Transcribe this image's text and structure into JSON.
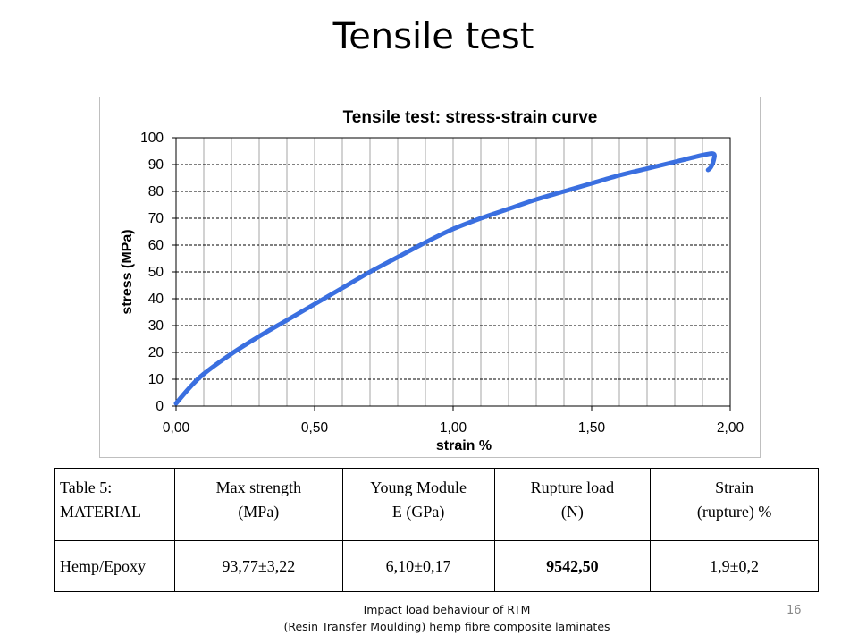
{
  "slide": {
    "title": "Tensile test",
    "footer_line1": "Impact load behaviour of RTM",
    "footer_line2": "(Resin Transfer Moulding) hemp fibre composite laminates",
    "page_number": "16"
  },
  "chart_data": {
    "type": "line",
    "title": "Tensile test: stress-strain curve",
    "xlabel": "strain %",
    "ylabel": "stress (MPa)",
    "xlim": [
      0,
      2
    ],
    "ylim": [
      0,
      100
    ],
    "x_ticks": [
      "0,00",
      "0,50",
      "1,00",
      "1,50",
      "2,00"
    ],
    "y_ticks": [
      "0",
      "10",
      "20",
      "30",
      "40",
      "50",
      "60",
      "70",
      "80",
      "90",
      "100"
    ],
    "grid": true,
    "line_color": "#3a6fe0",
    "series": [
      {
        "x": [
          0.0,
          0.05,
          0.1,
          0.2,
          0.3,
          0.4,
          0.5,
          0.6,
          0.7,
          0.8,
          0.9,
          1.0,
          1.1,
          1.2,
          1.3,
          1.4,
          1.5,
          1.6,
          1.7,
          1.8,
          1.9,
          1.94,
          1.94,
          1.93,
          1.92
        ],
        "y": [
          1,
          7,
          12,
          19.5,
          26,
          32,
          38,
          44,
          50,
          55.5,
          61,
          66,
          70,
          73.5,
          77,
          80,
          83,
          86,
          88.5,
          91,
          93.5,
          94,
          91.5,
          89,
          88
        ]
      }
    ]
  },
  "table": {
    "header_line1": [
      "Table 5:",
      "Max strength",
      "Young Module",
      "Rupture load",
      "Strain"
    ],
    "header_line2": [
      "MATERIAL",
      "(MPa)",
      "E (GPa)",
      "(N)",
      "(rupture) %"
    ],
    "row": [
      "Hemp/Epoxy",
      "93,77±3,22",
      "6,10±0,17",
      "9542,50",
      "1,9±0,2"
    ]
  }
}
